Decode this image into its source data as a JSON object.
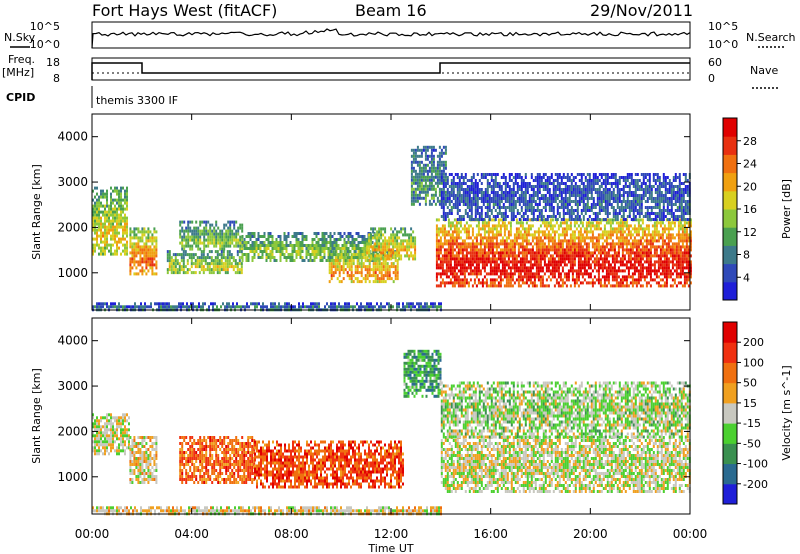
{
  "header": {
    "station": "Fort Hays West (fitACF)",
    "beam": "Beam 16",
    "date": "29/Nov/2011"
  },
  "panels": {
    "nsky_label": "N.Sky",
    "nsky_ticks": [
      "10^5",
      "10^0"
    ],
    "nsearch_label": "N.Search",
    "nsearch_ticks": [
      "10^5",
      "10^0"
    ],
    "freq_label_1": "Freq.",
    "freq_label_2": "[MHz]",
    "freq_ticks": [
      "18",
      "8"
    ],
    "nave_label": "Nave",
    "nave_ticks": [
      "60",
      "0"
    ],
    "cpid_label": "CPID",
    "cpid_text": "themis 3300 IF"
  },
  "chart_data": [
    {
      "type": "heatmap",
      "name": "power",
      "ylabel": "Slant Range [km]",
      "xlabel": "Time UT",
      "x_ticks": [
        "00:00",
        "04:00",
        "08:00",
        "12:00",
        "16:00",
        "20:00",
        "00:00"
      ],
      "xlim_hours": [
        0,
        24
      ],
      "y_ticks": [
        "1000",
        "2000",
        "3000",
        "4000"
      ],
      "ylim": [
        180,
        4500
      ],
      "colorbar": {
        "label": "Power [dB]",
        "ticks": [
          "28",
          "24",
          "20",
          "16",
          "12",
          "8",
          "4"
        ],
        "range": [
          0,
          30
        ],
        "colors": [
          "#1f1fd8",
          "#2f49b8",
          "#3d7a8a",
          "#4aa050",
          "#8cc83c",
          "#d8d020",
          "#f0a010",
          "#f07010",
          "#e83010",
          "#e00000"
        ]
      },
      "regions": [
        {
          "t0": 0.0,
          "t1": 1.4,
          "r0": 1400,
          "r1": 2900,
          "level": 0.45
        },
        {
          "t0": 1.5,
          "t1": 2.6,
          "r0": 950,
          "r1": 2000,
          "level": 0.6
        },
        {
          "t0": 3.5,
          "t1": 6.0,
          "r0": 1500,
          "r1": 2150,
          "level": 0.35
        },
        {
          "t0": 3.0,
          "t1": 6.0,
          "r0": 1000,
          "r1": 1500,
          "level": 0.4
        },
        {
          "t0": 6.0,
          "t1": 11.5,
          "r0": 1300,
          "r1": 1900,
          "level": 0.35
        },
        {
          "t0": 9.5,
          "t1": 12.3,
          "r0": 800,
          "r1": 1500,
          "level": 0.55
        },
        {
          "t0": 11.0,
          "t1": 13.0,
          "r0": 1300,
          "r1": 2000,
          "level": 0.5
        },
        {
          "t0": 12.8,
          "t1": 14.2,
          "r0": 2500,
          "r1": 3800,
          "level": 0.25
        },
        {
          "t0": 13.8,
          "t1": 24.0,
          "r0": 700,
          "r1": 2200,
          "level": 0.75
        },
        {
          "t0": 14.0,
          "t1": 24.0,
          "r0": 2200,
          "r1": 3200,
          "level": 0.15
        },
        {
          "t0": 0.0,
          "t1": 14.0,
          "r0": 200,
          "r1": 350,
          "level": 0.2
        }
      ]
    },
    {
      "type": "heatmap",
      "name": "velocity",
      "ylabel": "Slant Range [km]",
      "xlabel": "Time UT",
      "x_ticks": [
        "00:00",
        "04:00",
        "08:00",
        "12:00",
        "16:00",
        "20:00",
        "00:00"
      ],
      "xlim_hours": [
        0,
        24
      ],
      "y_ticks": [
        "1000",
        "2000",
        "3000",
        "4000"
      ],
      "ylim": [
        180,
        4500
      ],
      "colorbar": {
        "label": "Velocity [m s^-1]",
        "ticks": [
          "200",
          "100",
          "50",
          "15",
          "-15",
          "-50",
          "-100",
          "-200"
        ],
        "units_sup": "-1",
        "colors": [
          "#1f1fd8",
          "#2a6a90",
          "#3a9050",
          "#4bd030",
          "#c8c8c0",
          "#f0a020",
          "#f07010",
          "#f03010",
          "#e00000"
        ]
      },
      "regions": [
        {
          "t0": 0.0,
          "t1": 1.5,
          "r0": 1500,
          "r1": 2400,
          "level": 0.5
        },
        {
          "t0": 1.5,
          "t1": 2.6,
          "r0": 900,
          "r1": 1900,
          "level": 0.55
        },
        {
          "t0": 3.5,
          "t1": 6.5,
          "r0": 900,
          "r1": 1900,
          "level": 0.75
        },
        {
          "t0": 6.5,
          "t1": 12.5,
          "r0": 800,
          "r1": 1800,
          "level": 0.8
        },
        {
          "t0": 12.5,
          "t1": 14.0,
          "r0": 2800,
          "r1": 3800,
          "level": 0.3
        },
        {
          "t0": 14.0,
          "t1": 24.0,
          "r0": 700,
          "r1": 1900,
          "level": 0.5
        },
        {
          "t0": 14.0,
          "t1": 24.0,
          "r0": 1900,
          "r1": 3100,
          "level": 0.45
        },
        {
          "t0": 0.0,
          "t1": 14.0,
          "r0": 200,
          "r1": 350,
          "level": 0.55
        }
      ]
    }
  ]
}
